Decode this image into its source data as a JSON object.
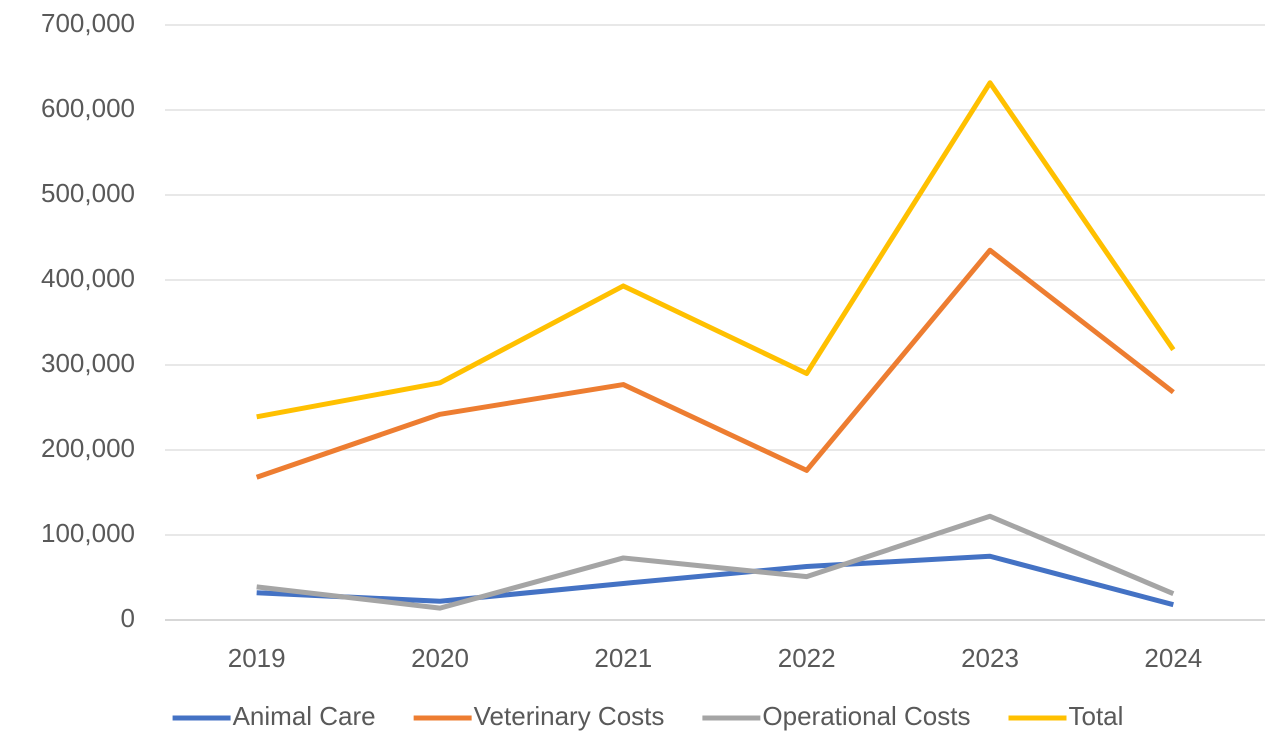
{
  "chart_data": {
    "type": "line",
    "categories": [
      "2019",
      "2020",
      "2021",
      "2022",
      "2023",
      "2024"
    ],
    "series": [
      {
        "name": "Animal Care",
        "color": "#4472c4",
        "values": [
          32000,
          22000,
          43000,
          63000,
          75000,
          18000
        ]
      },
      {
        "name": "Veterinary Costs",
        "color": "#ed7d31",
        "values": [
          168000,
          242000,
          277000,
          176000,
          435000,
          268000
        ]
      },
      {
        "name": "Operational Costs",
        "color": "#a5a5a5",
        "values": [
          39000,
          14000,
          73000,
          51000,
          122000,
          31000
        ]
      },
      {
        "name": "Total",
        "color": "#ffc000",
        "values": [
          239000,
          279000,
          393000,
          290000,
          632000,
          318000
        ]
      }
    ],
    "ylim": [
      0,
      700000
    ],
    "yticks": [
      0,
      {
        "value": 100000,
        "label": "100,000"
      },
      {
        "value": 200000,
        "label": "200,000"
      },
      {
        "value": 300000,
        "label": "300,000"
      },
      {
        "value": 400000,
        "label": "400,000"
      },
      {
        "value": 500000,
        "label": "500,000"
      },
      {
        "value": 600000,
        "label": "600,000"
      },
      {
        "value": 700000,
        "label": "700,000"
      }
    ],
    "grid": true,
    "legend": "bottom"
  }
}
